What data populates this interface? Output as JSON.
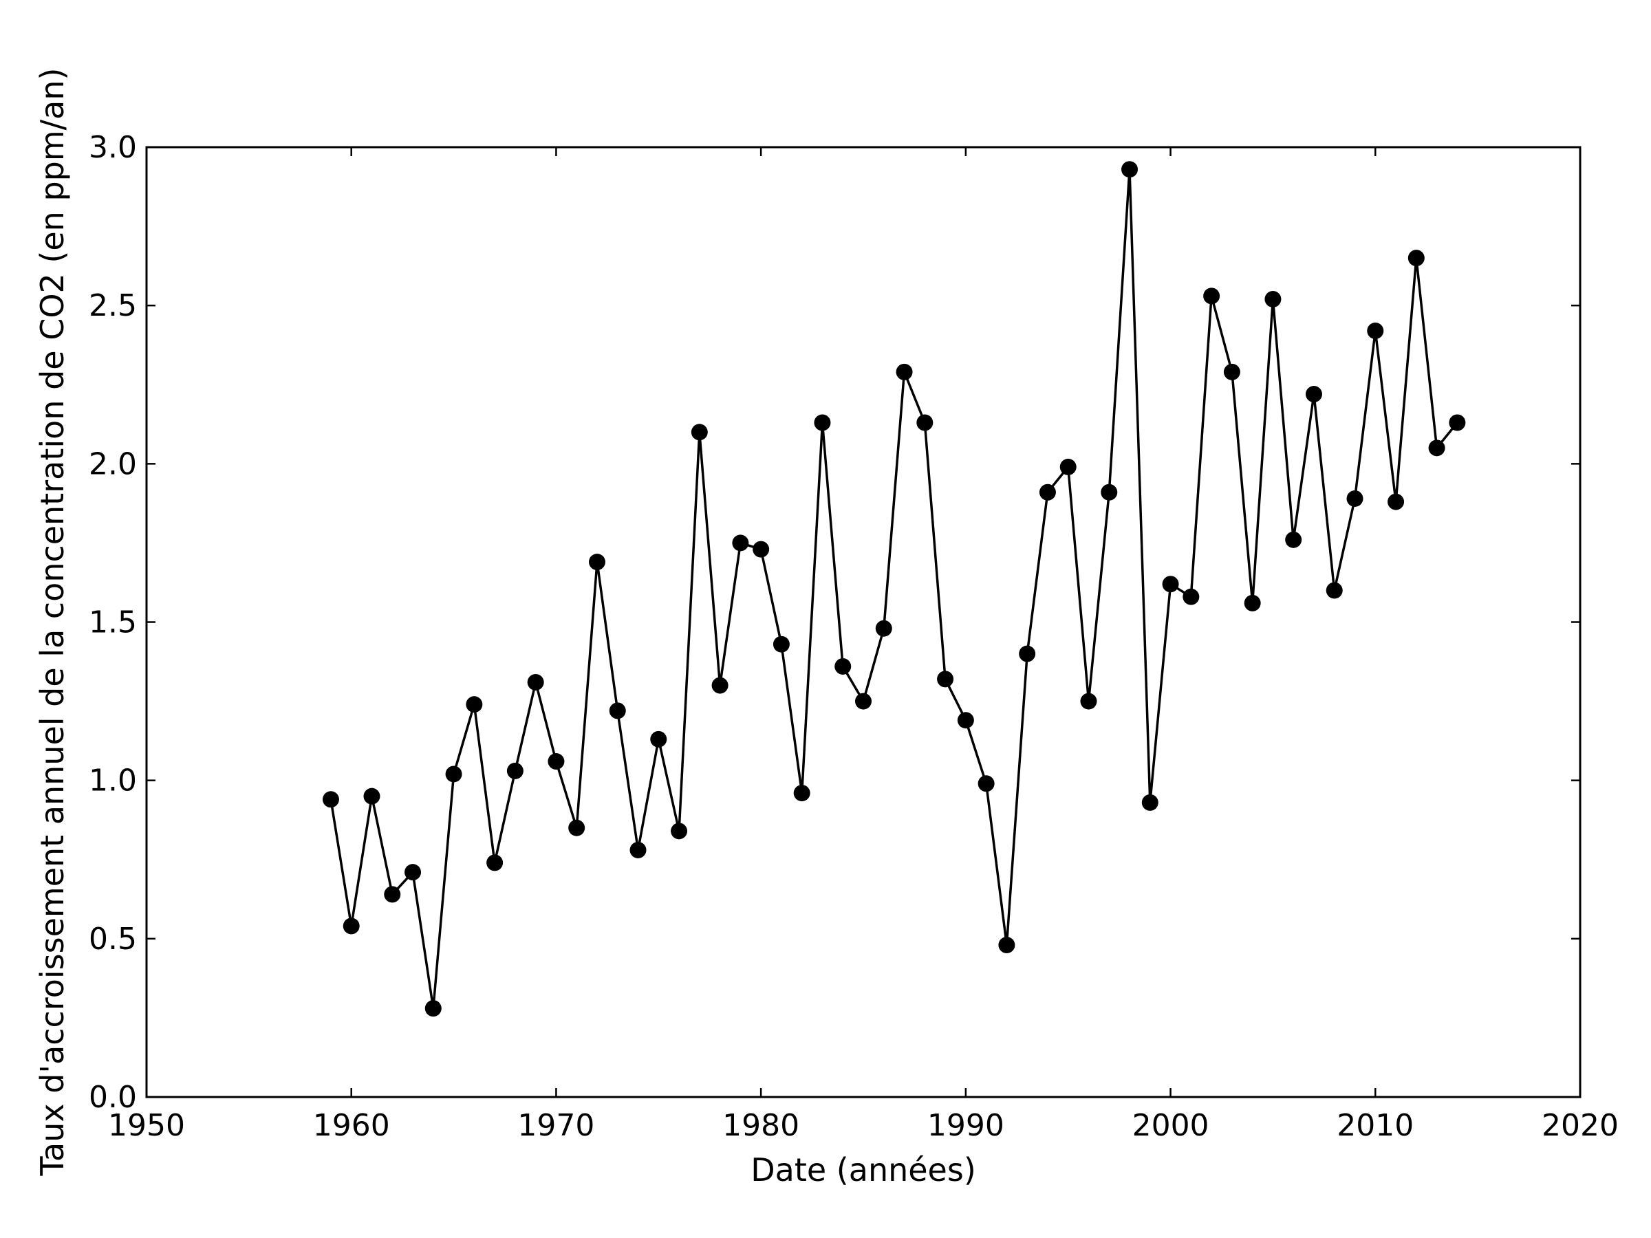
{
  "chart_data": {
    "type": "line",
    "title": "",
    "xlabel": "Date (années)",
    "ylabel": "Taux d'accroissement annuel de la concentration de CO2 (en ppm/an)",
    "xlim": [
      1950,
      2020
    ],
    "ylim": [
      0.0,
      3.0
    ],
    "xticks": [
      1950,
      1960,
      1970,
      1980,
      1990,
      2000,
      2010,
      2020
    ],
    "yticks": [
      0.0,
      0.5,
      1.0,
      1.5,
      2.0,
      2.5,
      3.0
    ],
    "xtick_labels": [
      "1950",
      "1960",
      "1970",
      "1980",
      "1990",
      "2000",
      "2010",
      "2020"
    ],
    "ytick_labels": [
      "0.0",
      "0.5",
      "1.0",
      "1.5",
      "2.0",
      "2.5",
      "3.0"
    ],
    "grid": false,
    "legend": "none",
    "series": [
      {
        "color": "#000000",
        "marker": "circle",
        "x": [
          1959,
          1960,
          1961,
          1962,
          1963,
          1964,
          1965,
          1966,
          1967,
          1968,
          1969,
          1970,
          1971,
          1972,
          1973,
          1974,
          1975,
          1976,
          1977,
          1978,
          1979,
          1980,
          1981,
          1982,
          1983,
          1984,
          1985,
          1986,
          1987,
          1988,
          1989,
          1990,
          1991,
          1992,
          1993,
          1994,
          1995,
          1996,
          1997,
          1998,
          1999,
          2000,
          2001,
          2002,
          2003,
          2004,
          2005,
          2006,
          2007,
          2008,
          2009,
          2010,
          2011,
          2012,
          2013,
          2014
        ],
        "y": [
          0.94,
          0.54,
          0.95,
          0.64,
          0.71,
          0.28,
          1.02,
          1.24,
          0.74,
          1.03,
          1.31,
          1.06,
          0.85,
          1.69,
          1.22,
          0.78,
          1.13,
          0.84,
          2.1,
          1.3,
          1.75,
          1.73,
          1.43,
          0.96,
          2.13,
          1.36,
          1.25,
          1.48,
          2.29,
          2.13,
          1.32,
          1.19,
          0.99,
          0.48,
          1.4,
          1.91,
          1.99,
          1.25,
          1.91,
          2.93,
          0.93,
          1.62,
          1.58,
          2.53,
          2.29,
          1.56,
          2.52,
          1.76,
          2.22,
          1.6,
          1.89,
          2.42,
          1.88,
          2.65,
          2.05,
          2.13
        ]
      }
    ]
  }
}
